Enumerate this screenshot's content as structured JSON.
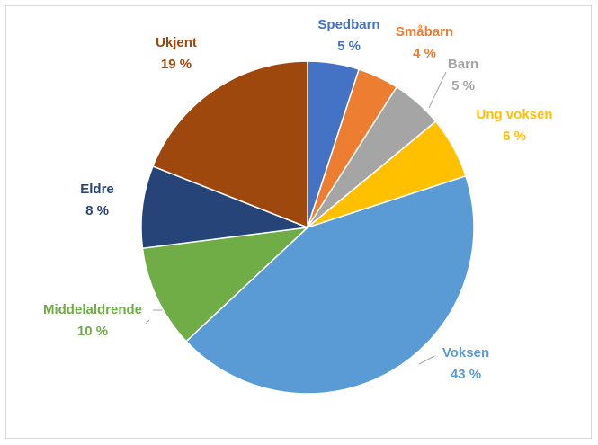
{
  "chart_data": {
    "type": "pie",
    "categories": [
      "Spedbarn",
      "Småbarn",
      "Barn",
      "Ung voksen",
      "Voksen",
      "Middelaldrende",
      "Eldre",
      "Ukjent"
    ],
    "values": [
      5,
      4,
      5,
      6,
      43,
      10,
      8,
      19
    ],
    "value_labels": [
      "5 %",
      "4 %",
      "5 %",
      "6 %",
      "43 %",
      "10 %",
      "8 %",
      "19 %"
    ],
    "colors": [
      "#4472c4",
      "#ed7d31",
      "#a5a5a5",
      "#ffc000",
      "#5b9bd5",
      "#70ad47",
      "#264478",
      "#9e480e"
    ]
  }
}
